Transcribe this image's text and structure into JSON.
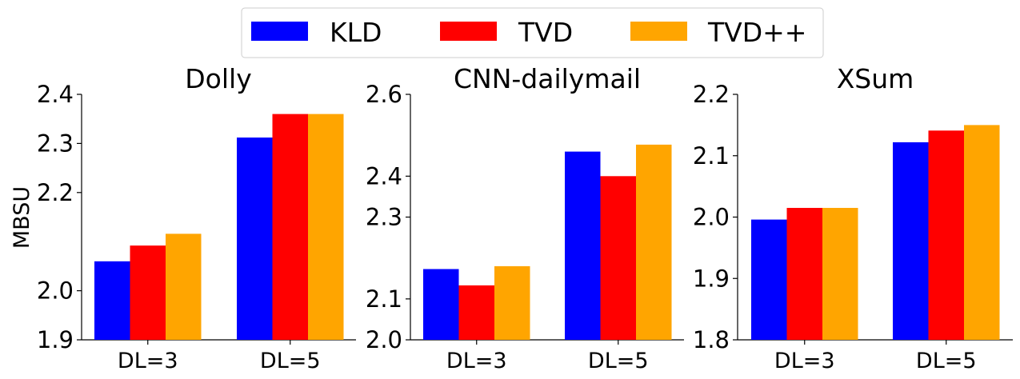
{
  "legend": [
    {
      "label": "KLD",
      "color": "#0000ff"
    },
    {
      "label": "TVD",
      "color": "#ff0000"
    },
    {
      "label": "TVD++",
      "color": "#ffa500"
    }
  ],
  "shared_ylabel": "MBSU",
  "chart_data": [
    {
      "type": "bar",
      "title": "Dolly",
      "categories": [
        "DL=3",
        "DL=5"
      ],
      "ylim": [
        1.9,
        2.4
      ],
      "yticks": [
        "1.9",
        "2.0",
        "2.2",
        "2.3",
        "2.4"
      ],
      "ytick_positions": [
        1.9,
        2.0,
        2.2,
        2.3,
        2.4
      ],
      "series": [
        {
          "name": "KLD",
          "values": [
            2.06,
            2.312
          ]
        },
        {
          "name": "TVD",
          "values": [
            2.092,
            2.36
          ]
        },
        {
          "name": "TVD++",
          "values": [
            2.116,
            2.36
          ]
        }
      ]
    },
    {
      "type": "bar",
      "title": "CNN-dailymail",
      "categories": [
        "DL=3",
        "DL=5"
      ],
      "ylim": [
        2.0,
        2.6
      ],
      "yticks": [
        "2.0",
        "2.1",
        "2.3",
        "2.4",
        "2.6"
      ],
      "ytick_positions": [
        2.0,
        2.1,
        2.3,
        2.4,
        2.6
      ],
      "series": [
        {
          "name": "KLD",
          "values": [
            2.173,
            2.46
          ]
        },
        {
          "name": "TVD",
          "values": [
            2.133,
            2.4
          ]
        },
        {
          "name": "TVD++",
          "values": [
            2.18,
            2.477
          ]
        }
      ]
    },
    {
      "type": "bar",
      "title": "XSum",
      "categories": [
        "DL=3",
        "DL=5"
      ],
      "ylim": [
        1.8,
        2.2
      ],
      "yticks": [
        "1.8",
        "1.9",
        "2.0",
        "2.1",
        "2.2"
      ],
      "ytick_positions": [
        1.8,
        1.9,
        2.0,
        2.1,
        2.2
      ],
      "series": [
        {
          "name": "KLD",
          "values": [
            1.996,
            2.122
          ]
        },
        {
          "name": "TVD",
          "values": [
            2.015,
            2.141
          ]
        },
        {
          "name": "TVD++",
          "values": [
            2.015,
            2.15
          ]
        }
      ]
    }
  ]
}
